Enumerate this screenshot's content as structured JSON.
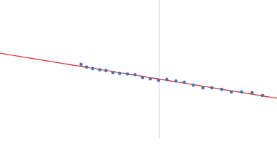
{
  "chart_data": {
    "type": "scatter",
    "x": [
      117,
      125,
      134,
      144,
      153,
      163,
      173,
      184,
      195,
      206,
      217,
      229,
      241,
      254,
      266,
      279,
      293,
      306,
      320,
      334,
      349,
      364,
      379
    ],
    "values": [
      107,
      103,
      101,
      99,
      98,
      95,
      94,
      93,
      92,
      88,
      86,
      84,
      85,
      83,
      81,
      77,
      73,
      73,
      71,
      67,
      67,
      66,
      62
    ],
    "color": "#4a6fb5",
    "fit": {
      "x": [
        0,
        400
      ],
      "values": [
        123,
        58
      ],
      "color": "#d9302c"
    },
    "vline": {
      "x": 230,
      "color": "#c9d3e6"
    },
    "xlim": [
      0,
      400
    ],
    "ylim": [
      0,
      200
    ]
  }
}
